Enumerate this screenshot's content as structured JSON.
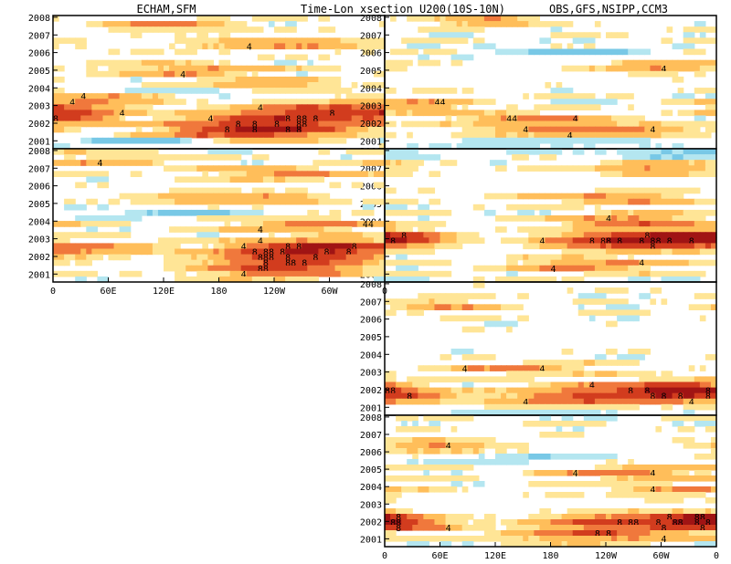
{
  "title": {
    "left": "ECHAM,SFM",
    "center": "Time-Lon xsection U200(10S-10N)",
    "right": "OBS,GFS,NSIPP,CCM3"
  },
  "colors": {
    "neg_light": "#b4e6f0",
    "neg_mid": "#78c8e6",
    "pos_1": "#ffe596",
    "pos_2": "#ffbe5a",
    "pos_3": "#f0783c",
    "pos_4": "#d23c1e",
    "pos_5": "#a01414",
    "contour": "#000000"
  },
  "chart_data": {
    "type": "heatmap",
    "variable": "U200 anomaly (10S-10N)",
    "x_ticks": [
      "0",
      "60E",
      "120E",
      "180",
      "120W",
      "60W",
      "0"
    ],
    "y_ticks": [
      "2001",
      "2002",
      "2003",
      "2004",
      "2005",
      "2006",
      "2007",
      "2008"
    ],
    "contour_label": "4",
    "contour_label_strong": "8",
    "panels": [
      {
        "id": "ECHAM",
        "features": [
          {
            "year": 2002.5,
            "lon": 20,
            "amp": 7,
            "width": 40,
            "depth": 0.35
          },
          {
            "year": 2002.0,
            "lon": 240,
            "amp": 9,
            "width": 70,
            "depth": 0.45
          },
          {
            "year": 2002.8,
            "lon": 290,
            "amp": 6,
            "width": 60,
            "depth": 0.3
          },
          {
            "year": 2001.4,
            "lon": 200,
            "amp": 6,
            "width": 70,
            "depth": 0.3
          },
          {
            "year": 2003.4,
            "lon": 60,
            "amp": 5,
            "width": 50,
            "depth": 0.25
          },
          {
            "year": 2005.0,
            "lon": 150,
            "amp": 5,
            "width": 60,
            "depth": 0.25
          },
          {
            "year": 2006.5,
            "lon": 250,
            "amp": 5,
            "width": 70,
            "depth": 0.25
          },
          {
            "year": 2007.6,
            "lon": 120,
            "amp": 5,
            "width": 50,
            "depth": 0.25
          },
          {
            "year": 2004.2,
            "lon": 230,
            "amp": 4.5,
            "width": 60,
            "depth": 0.25
          },
          {
            "year": 2001.0,
            "lon": 100,
            "amp": -4,
            "width": 60,
            "depth": 0.2
          },
          {
            "year": 2003.8,
            "lon": 150,
            "amp": -3.5,
            "width": 50,
            "depth": 0.2
          }
        ]
      },
      {
        "id": "OBS",
        "features": [
          {
            "year": 2001.6,
            "lon": 220,
            "amp": 6,
            "width": 80,
            "depth": 0.3
          },
          {
            "year": 2007.8,
            "lon": 110,
            "amp": 5,
            "width": 40,
            "depth": 0.25
          },
          {
            "year": 2003.0,
            "lon": 40,
            "amp": 5,
            "width": 40,
            "depth": 0.25
          },
          {
            "year": 2005.2,
            "lon": 300,
            "amp": 5,
            "width": 50,
            "depth": 0.25
          },
          {
            "year": 2002.3,
            "lon": 150,
            "amp": 4.5,
            "width": 60,
            "depth": 0.25
          },
          {
            "year": 2000.9,
            "lon": 180,
            "amp": -4.5,
            "width": 90,
            "depth": 0.15
          },
          {
            "year": 2006.0,
            "lon": 200,
            "amp": -3.5,
            "width": 60,
            "depth": 0.2
          }
        ]
      },
      {
        "id": "GFS",
        "features": [
          {
            "year": 2003.0,
            "lon": 20,
            "amp": 7,
            "width": 40,
            "depth": 0.3
          },
          {
            "year": 2002.9,
            "lon": 260,
            "amp": 10,
            "width": 60,
            "depth": 0.35
          },
          {
            "year": 2003.0,
            "lon": 330,
            "amp": 7,
            "width": 40,
            "depth": 0.3
          },
          {
            "year": 2001.5,
            "lon": 220,
            "amp": 5,
            "width": 60,
            "depth": 0.3
          },
          {
            "year": 2004.0,
            "lon": 270,
            "amp": 6,
            "width": 60,
            "depth": 0.3
          },
          {
            "year": 2005.3,
            "lon": 250,
            "amp": 5,
            "width": 60,
            "depth": 0.25
          },
          {
            "year": 2007.0,
            "lon": 300,
            "amp": 5,
            "width": 60,
            "depth": 0.25
          },
          {
            "year": 2007.9,
            "lon": 330,
            "amp": -5,
            "width": 60,
            "depth": 0.2
          }
        ]
      },
      {
        "id": "NSIPP",
        "features": [
          {
            "year": 2001.9,
            "lon": 270,
            "amp": 7,
            "width": 80,
            "depth": 0.4
          },
          {
            "year": 2002.0,
            "lon": 330,
            "amp": 6,
            "width": 40,
            "depth": 0.3
          },
          {
            "year": 2001.3,
            "lon": 210,
            "amp": 5,
            "width": 70,
            "depth": 0.3
          },
          {
            "year": 2001.6,
            "lon": 20,
            "amp": 4.5,
            "width": 40,
            "depth": 0.25
          },
          {
            "year": 2003.2,
            "lon": 150,
            "amp": 4,
            "width": 60,
            "depth": 0.25
          },
          {
            "year": 2006.8,
            "lon": 60,
            "amp": 3.5,
            "width": 50,
            "depth": 0.3
          },
          {
            "year": 2000.8,
            "lon": 200,
            "amp": -3.5,
            "width": 80,
            "depth": 0.2
          }
        ]
      },
      {
        "id": "CCM3",
        "features": [
          {
            "year": 2002.0,
            "lon": 270,
            "amp": 8,
            "width": 70,
            "depth": 0.35
          },
          {
            "year": 2002.1,
            "lon": 350,
            "amp": 7,
            "width": 30,
            "depth": 0.3
          },
          {
            "year": 2001.2,
            "lon": 230,
            "amp": 6,
            "width": 70,
            "depth": 0.3
          },
          {
            "year": 2001.9,
            "lon": 20,
            "amp": 5,
            "width": 40,
            "depth": 0.3
          },
          {
            "year": 2004.8,
            "lon": 270,
            "amp": 5,
            "width": 60,
            "depth": 0.3
          },
          {
            "year": 2006.3,
            "lon": 60,
            "amp": 4.5,
            "width": 50,
            "depth": 0.3
          },
          {
            "year": 2003.8,
            "lon": 320,
            "amp": 4,
            "width": 50,
            "depth": 0.3
          },
          {
            "year": 2005.6,
            "lon": 150,
            "amp": -3.5,
            "width": 60,
            "depth": 0.2
          }
        ]
      }
    ]
  }
}
